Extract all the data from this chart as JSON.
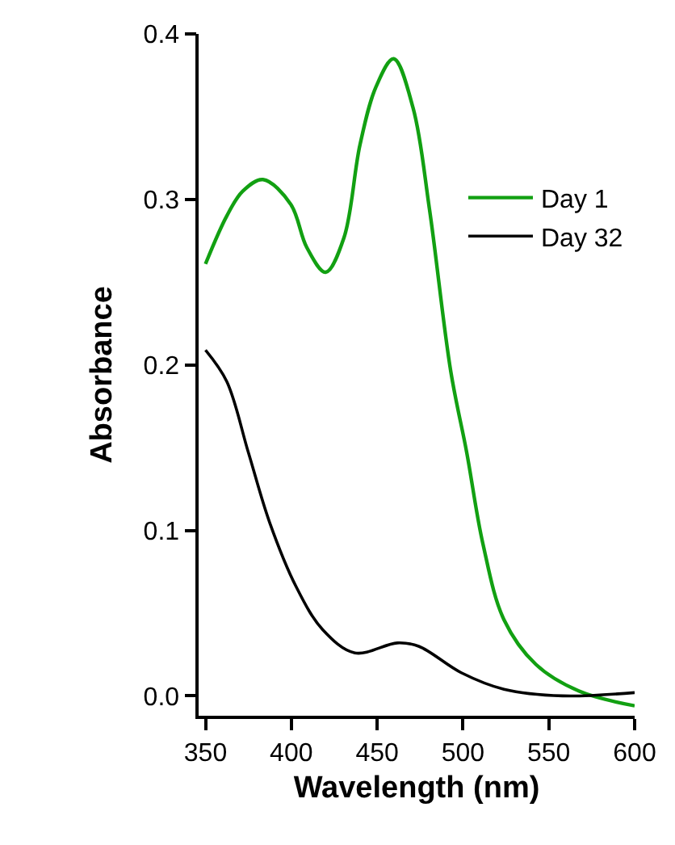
{
  "chart_data": {
    "type": "line",
    "xlabel": "Wavelength (nm)",
    "ylabel": "Absorbance",
    "xlim": [
      346,
      600
    ],
    "ylim": [
      -0.012,
      0.4
    ],
    "xticks": [
      350,
      400,
      450,
      500,
      550,
      600
    ],
    "yticks": [
      {
        "value": 0,
        "label": "0.0"
      },
      0.1,
      0.2,
      0.3,
      0.4
    ],
    "legend": "top right",
    "marker": "none",
    "line_style": "solid",
    "series": [
      {
        "name": "Day 1",
        "color": "#12a012",
        "x": [
          350,
          362.4,
          371.7,
          383.5,
          399.7,
          409,
          420,
          430.7,
          440,
          449.3,
          459.6,
          471,
          480.5,
          492.9,
          502.2,
          511.6,
          523.9,
          542.5,
          567.4,
          600
        ],
        "values": [
          0.261,
          0.29,
          0.305,
          0.312,
          0.297,
          0.271,
          0.256,
          0.277,
          0.333,
          0.368,
          0.385,
          0.355,
          0.294,
          0.196,
          0.147,
          0.092,
          0.046,
          0.019,
          0.003,
          -0.006
        ]
      },
      {
        "name": "Day 32",
        "color": "#000000",
        "x": [
          350,
          362.4,
          375,
          387.3,
          402.8,
          418.3,
          437,
          461.8,
          474.2,
          499,
          523.9,
          558,
          600
        ],
        "values": [
          0.209,
          0.19,
          0.147,
          0.105,
          0.066,
          0.04,
          0.026,
          0.032,
          0.03,
          0.014,
          0.004,
          0.0,
          0.002
        ]
      }
    ]
  }
}
